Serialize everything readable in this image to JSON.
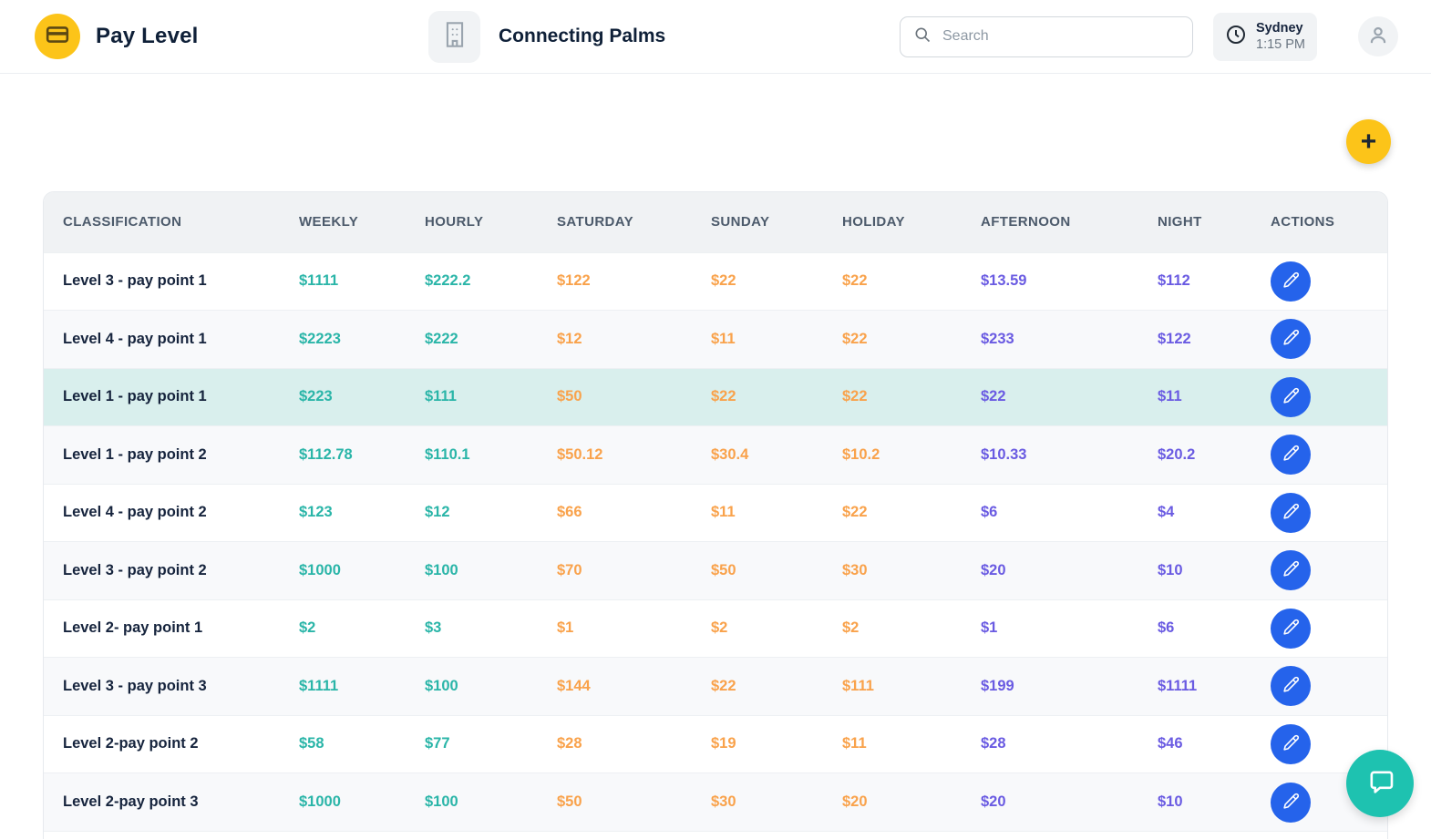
{
  "colors": {
    "accent_yellow": "#fcc419",
    "teal_value": "#2ab5a8",
    "orange_value": "#f9a24b",
    "purple_value": "#6a5be2",
    "edit_button_blue": "#2563eb",
    "highlight_row": "#d9efed",
    "chat_button_teal": "#1ec2b0"
  },
  "header": {
    "title": "Pay Level",
    "company": "Connecting Palms",
    "search_placeholder": "Search",
    "clock": {
      "city": "Sydney",
      "time": "1:15 PM"
    },
    "icons": {
      "logo": "credit-card-icon",
      "company": "building-icon",
      "search": "search-icon",
      "clock": "clock-icon",
      "user": "user-icon"
    }
  },
  "fab": {
    "add_label": "+",
    "add_icon": "plus-icon",
    "chat_icon": "chat-bubble-icon"
  },
  "table": {
    "columns": [
      "CLASSIFICATION",
      "WEEKLY",
      "HOURLY",
      "SATURDAY",
      "SUNDAY",
      "HOLIDAY",
      "AFTERNOON",
      "NIGHT",
      "ACTIONS"
    ],
    "edit_icon": "pencil-icon",
    "rows": [
      {
        "classification": "Level 3 - pay point 1",
        "weekly": "$1111",
        "hourly": "$222.2",
        "saturday": "$122",
        "sunday": "$22",
        "holiday": "$22",
        "afternoon": "$13.59",
        "night": "$112",
        "highlighted": false
      },
      {
        "classification": "Level 4 - pay point 1",
        "weekly": "$2223",
        "hourly": "$222",
        "saturday": "$12",
        "sunday": "$11",
        "holiday": "$22",
        "afternoon": "$233",
        "night": "$122",
        "highlighted": false
      },
      {
        "classification": "Level 1 - pay point 1",
        "weekly": "$223",
        "hourly": "$111",
        "saturday": "$50",
        "sunday": "$22",
        "holiday": "$22",
        "afternoon": "$22",
        "night": "$11",
        "highlighted": true
      },
      {
        "classification": "Level 1 - pay point 2",
        "weekly": "$112.78",
        "hourly": "$110.1",
        "saturday": "$50.12",
        "sunday": "$30.4",
        "holiday": "$10.2",
        "afternoon": "$10.33",
        "night": "$20.2",
        "highlighted": false
      },
      {
        "classification": "Level 4 - pay point 2",
        "weekly": "$123",
        "hourly": "$12",
        "saturday": "$66",
        "sunday": "$11",
        "holiday": "$22",
        "afternoon": "$6",
        "night": "$4",
        "highlighted": false
      },
      {
        "classification": "Level 3 - pay point 2",
        "weekly": "$1000",
        "hourly": "$100",
        "saturday": "$70",
        "sunday": "$50",
        "holiday": "$30",
        "afternoon": "$20",
        "night": "$10",
        "highlighted": false
      },
      {
        "classification": "Level 2- pay point 1",
        "weekly": "$2",
        "hourly": "$3",
        "saturday": "$1",
        "sunday": "$2",
        "holiday": "$2",
        "afternoon": "$1",
        "night": "$6",
        "highlighted": false
      },
      {
        "classification": "Level 3 - pay point 3",
        "weekly": "$1111",
        "hourly": "$100",
        "saturday": "$144",
        "sunday": "$22",
        "holiday": "$111",
        "afternoon": "$199",
        "night": "$1111",
        "highlighted": false
      },
      {
        "classification": "Level 2-pay point 2",
        "weekly": "$58",
        "hourly": "$77",
        "saturday": "$28",
        "sunday": "$19",
        "holiday": "$11",
        "afternoon": "$28",
        "night": "$46",
        "highlighted": false
      },
      {
        "classification": "Level 2-pay point 3",
        "weekly": "$1000",
        "hourly": "$100",
        "saturday": "$50",
        "sunday": "$30",
        "holiday": "$20",
        "afternoon": "$20",
        "night": "$10",
        "highlighted": false
      }
    ]
  }
}
